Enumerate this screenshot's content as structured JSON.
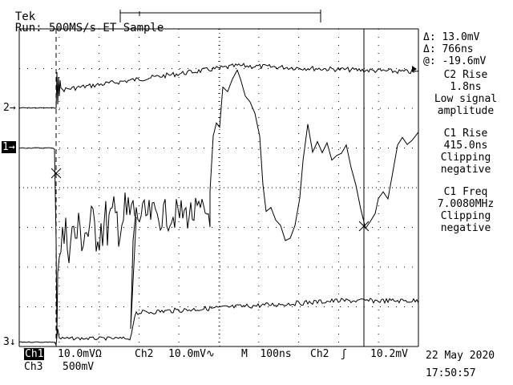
{
  "header": {
    "brand": "Tek",
    "status": "Run: 500MS/s ET Sample"
  },
  "cursor_readout": {
    "delta_v": "Δ: 13.0mV",
    "delta_t": "Δ: 766ns",
    "at_v": "@: -19.6mV"
  },
  "measurements": [
    {
      "title": "C2 Rise",
      "value": "1.8ns",
      "note1": "Low signal",
      "note2": "amplitude"
    },
    {
      "title": "C1 Rise",
      "value": "415.0ns",
      "note1": "Clipping",
      "note2": "negative"
    },
    {
      "title": "C1 Freq",
      "value": "7.0080MHz",
      "note1": "Clipping",
      "note2": "negative"
    }
  ],
  "channel_markers": {
    "ch2": "2→",
    "ch1": "1→",
    "ch3": "3↓"
  },
  "footer": {
    "ch1_label": "Ch1",
    "ch1_scale": "10.0mVΩ",
    "ch2_label": "Ch2",
    "ch2_scale": "10.0mV∿",
    "timebase": "M  100ns",
    "trig_source": "Ch2",
    "trig_slope": "ʃ",
    "trig_level": "10.2mV",
    "ch3_label": "Ch3",
    "ch3_scale": "500mV",
    "date": "22 May 2020",
    "time": "17:50:57"
  },
  "colors": {
    "trace": "#000000",
    "graticule": "#000000",
    "background": "#ffffff"
  }
}
